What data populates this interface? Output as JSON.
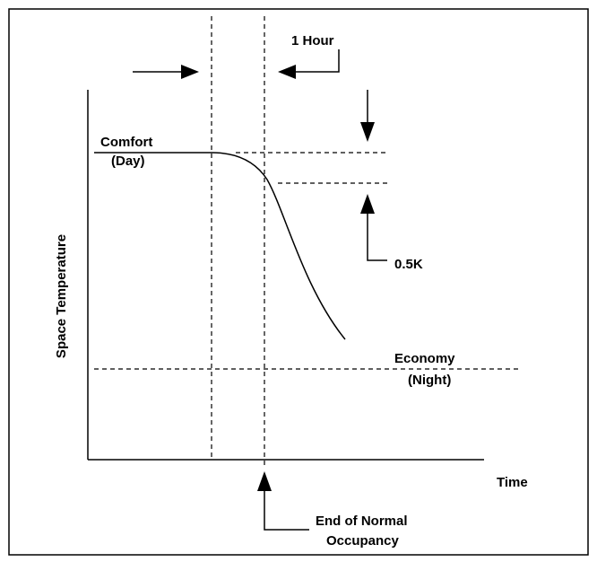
{
  "labels": {
    "one_hour": "1 Hour",
    "comfort": "Comfort",
    "day": "(Day)",
    "y_axis": "Space Temperature",
    "delta": "0.5K",
    "economy": "Economy",
    "night": "(Night)",
    "x_axis": "Time",
    "end_line1": "End of Normal",
    "end_line2": "Occupancy"
  }
}
